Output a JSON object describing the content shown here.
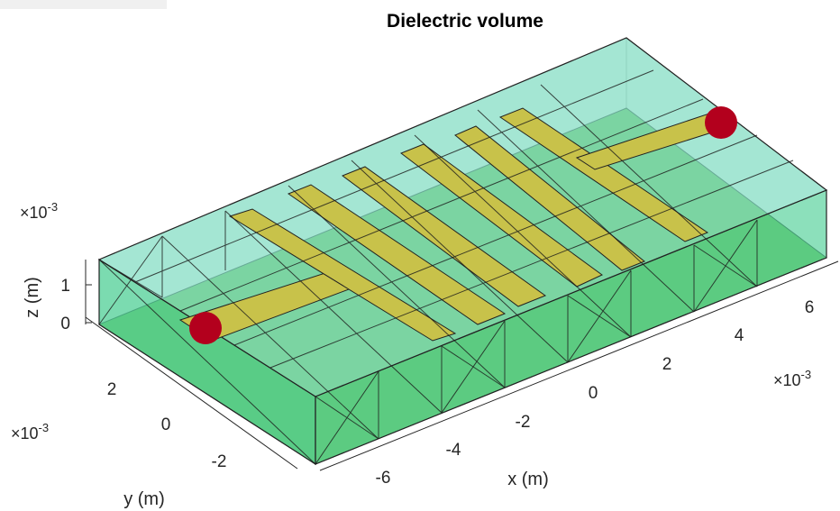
{
  "chart_data": {
    "type": "3d-mesh",
    "title": "Dielectric volume",
    "xlabel": "x (m)",
    "ylabel": "y (m)",
    "zlabel": "z (m)",
    "x_exponent": "10",
    "x_exponent_power": "-3",
    "y_exponent": "10",
    "y_exponent_power": "-3",
    "z_exponent": "10",
    "z_exponent_power": "-3",
    "x_ticks": [
      "-6",
      "-4",
      "-2",
      "0",
      "2",
      "4",
      "6"
    ],
    "y_ticks": [
      "-2",
      "0",
      "2"
    ],
    "z_ticks": [
      "0",
      "1"
    ],
    "xlim": [
      -7.5,
      7.5
    ],
    "ylim": [
      -3.5,
      3.5
    ],
    "zlim": [
      0,
      1.6
    ],
    "series": [
      {
        "name": "dielectric",
        "color": "#39c49a"
      },
      {
        "name": "conductor",
        "color": "#c8c24a"
      },
      {
        "name": "feed",
        "color": "#b3001d"
      }
    ]
  }
}
